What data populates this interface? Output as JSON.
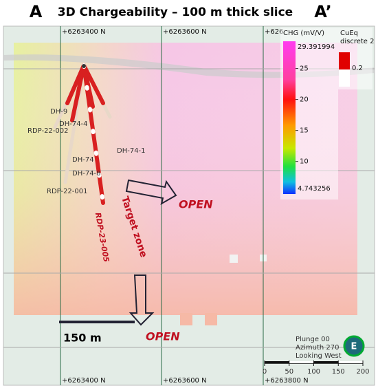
{
  "header": {
    "left": "A",
    "title": "3D Chargeability – 100 m thick slice",
    "right": "A’"
  },
  "grid_labels": {
    "top": [
      "+6263400 N",
      "+6263600 N",
      "+626"
    ],
    "bottom": [
      "+6263400 N",
      "+6263600 N",
      "+6263800 N"
    ]
  },
  "colorbar": {
    "title": "CHG (mV/V)",
    "max": 29.391994,
    "min": 4.743256,
    "ticks": [
      25,
      20,
      15,
      10
    ]
  },
  "cueq_legend": {
    "title": "CuEq discrete 2",
    "value": "0.2"
  },
  "drill_holes": [
    "DH-9",
    "DH-74-4",
    "RDP-22-002",
    "DH-74-1",
    "DH-74",
    "DH-74-8",
    "RDP-22-001",
    "RDP-23-005"
  ],
  "annotations": {
    "target": "Target zone",
    "open": [
      "OPEN",
      "OPEN"
    ],
    "scale": "150 m"
  },
  "view": {
    "plunge": "Plunge 00",
    "azimuth": "Azimuth 270",
    "looking": "Looking West",
    "compass": "E"
  },
  "scale_bar": [
    0,
    50,
    100,
    150,
    200
  ]
}
